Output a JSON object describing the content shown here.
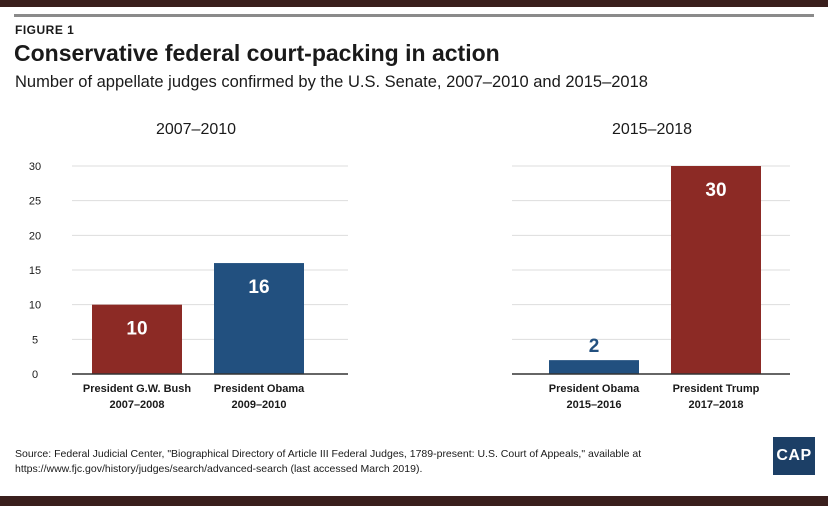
{
  "figure_label": "FIGURE 1",
  "title": "Conservative federal court-packing in action",
  "subtitle": "Number of appellate judges confirmed by the U.S. Senate, 2007–2010 and 2015–2018",
  "source": "Source: Federal Judicial Center, \"Biographical Directory of Article III Federal Judges, 1789-present: U.S. Court of Appeals,\" available at https://www.fjc.gov/history/judges/search/advanced-search (last accessed March 2019).",
  "logo": "CAP",
  "colors": {
    "republican": "#8c2a25",
    "democrat": "#22507f",
    "axis": "#333333",
    "grid": "#dddddd"
  },
  "chart_data": [
    {
      "type": "bar",
      "title": "2007–2010",
      "categories": [
        {
          "line1": "President G.W. Bush",
          "line2": "2007–2008"
        },
        {
          "line1": "President Obama",
          "line2": "2009–2010"
        }
      ],
      "values": [
        10,
        16
      ],
      "colors": [
        "#8c2a25",
        "#22507f"
      ],
      "ylim": [
        0,
        30
      ],
      "yticks": [
        0,
        5,
        10,
        15,
        20,
        25,
        30
      ],
      "ylabel": ""
    },
    {
      "type": "bar",
      "title": "2015–2018",
      "categories": [
        {
          "line1": "President Obama",
          "line2": "2015–2016"
        },
        {
          "line1": "President Trump",
          "line2": "2017–2018"
        }
      ],
      "values": [
        2,
        30
      ],
      "colors": [
        "#22507f",
        "#8c2a25"
      ],
      "ylim": [
        0,
        30
      ],
      "yticks": [],
      "ylabel": ""
    }
  ]
}
